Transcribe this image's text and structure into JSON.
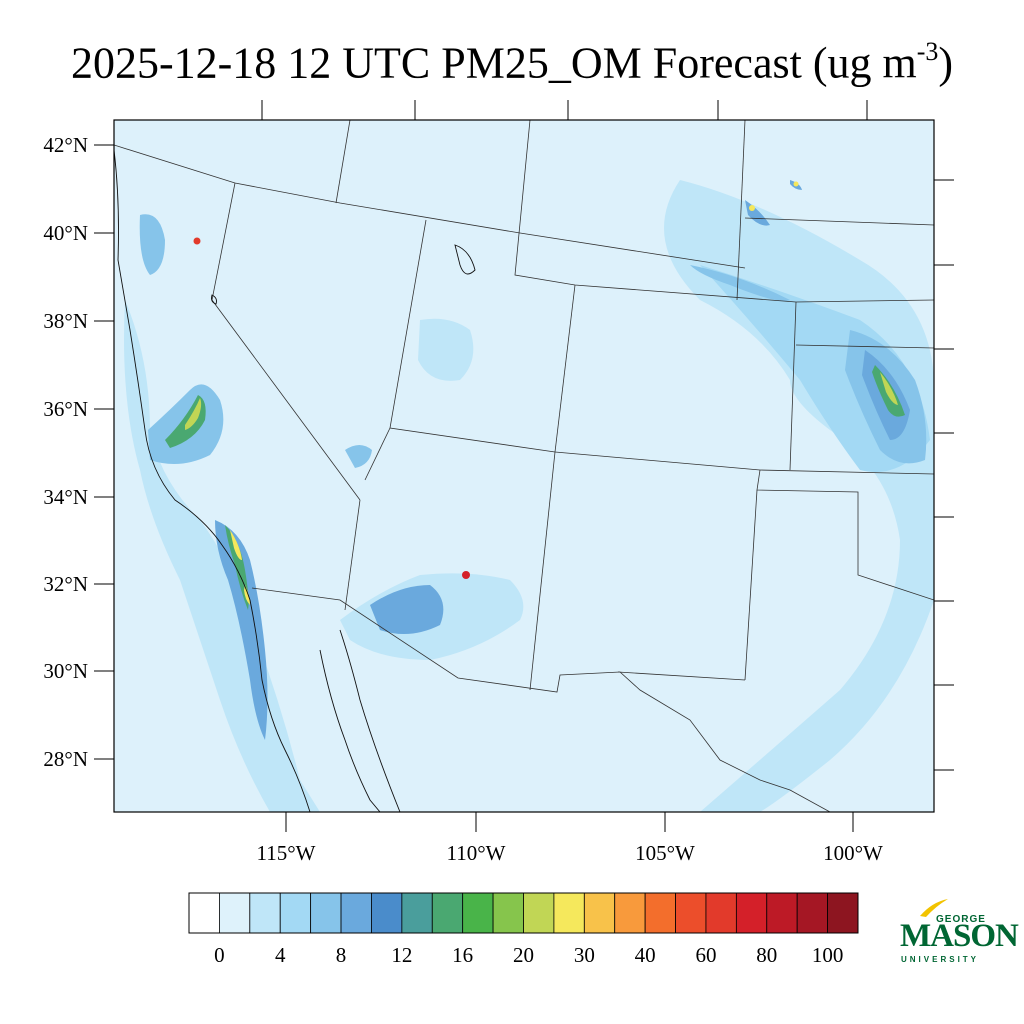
{
  "title": {
    "text": "2025-12-18 12 UTC PM25_OM Forecast (ug m",
    "superscript": "-3",
    "closing": ")"
  },
  "map": {
    "variable": "PM25_OM",
    "units": "ug m-3",
    "valid_time": "2025-12-18 12 UTC",
    "lat_labels": [
      "42°N",
      "40°N",
      "38°N",
      "36°N",
      "34°N",
      "32°N",
      "30°N",
      "28°N"
    ],
    "lon_labels": [
      "115°W",
      "110°W",
      "105°W",
      "100°W"
    ],
    "background_color": "#ddf1fb",
    "border_color": "#333333"
  },
  "colorbar": {
    "colors": [
      "#ffffff",
      "#def2fb",
      "#bfe6f8",
      "#a3d9f4",
      "#86c4ea",
      "#6aa9dd",
      "#4a8ccb",
      "#4a9e9c",
      "#4aa871",
      "#49b449",
      "#86c54c",
      "#c1d655",
      "#f5e85c",
      "#f8c24a",
      "#f89a3c",
      "#f36e2c",
      "#ec4e2b",
      "#e23a2b",
      "#d42029",
      "#bd1a26",
      "#a51724",
      "#8d1520"
    ],
    "labels": [
      "0",
      "4",
      "8",
      "12",
      "16",
      "20",
      "30",
      "40",
      "60",
      "80",
      "100"
    ]
  },
  "logo": {
    "top": "GEORGE",
    "main": "MASON",
    "sub": "UNIVERSITY",
    "color": "#006633",
    "accent": "#f2c300"
  }
}
